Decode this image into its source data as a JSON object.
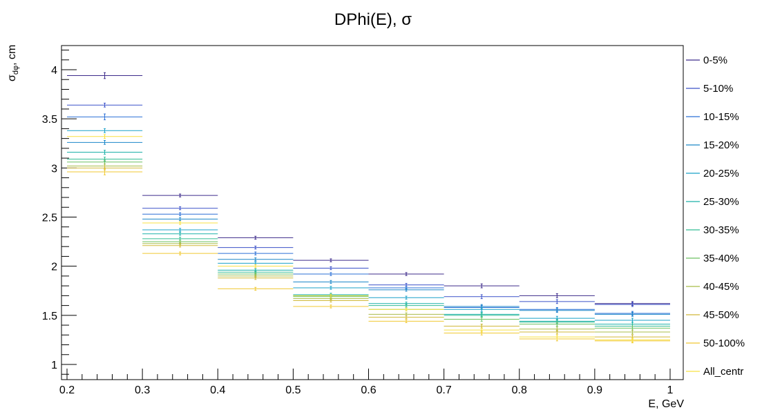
{
  "chart_data": {
    "type": "scatter",
    "title": "DPhi(E), σ",
    "xlabel": "E, GeV",
    "ylabel_main": "σ",
    "ylabel_sub": "dφ",
    "ylabel_unit": ", cm",
    "xlim": [
      0.2,
      1.0
    ],
    "ylim": [
      0.85,
      4.25
    ],
    "x_ticks": [
      0.2,
      0.3,
      0.4,
      0.5,
      0.6,
      0.7,
      0.8,
      0.9,
      1.0
    ],
    "x_tick_labels": [
      "0.2",
      "0.3",
      "0.4",
      "0.5",
      "0.6",
      "0.7",
      "0.8",
      "0.9",
      "1"
    ],
    "y_ticks": [
      1,
      1.5,
      2,
      2.5,
      3,
      3.5,
      4
    ],
    "y_tick_labels": [
      "1",
      "1.5",
      "2",
      "2.5",
      "3",
      "3.5",
      "4"
    ],
    "x_bins": [
      [
        0.2,
        0.3
      ],
      [
        0.3,
        0.4
      ],
      [
        0.4,
        0.5
      ],
      [
        0.5,
        0.6
      ],
      [
        0.6,
        0.7
      ],
      [
        0.7,
        0.8
      ],
      [
        0.8,
        0.9
      ],
      [
        0.9,
        1.0
      ]
    ],
    "x": [
      0.25,
      0.35,
      0.45,
      0.55,
      0.65,
      0.75,
      0.85,
      0.95
    ],
    "grid": false,
    "legend_position": "right",
    "series": [
      {
        "name": "0-5%",
        "color": "#3c2a8a",
        "values": [
          3.94,
          2.72,
          2.29,
          2.06,
          1.92,
          1.8,
          1.7,
          1.62
        ],
        "errors": [
          0.03,
          0.015,
          0.015,
          0.015,
          0.015,
          0.02,
          0.02,
          0.02
        ]
      },
      {
        "name": "5-10%",
        "color": "#3a50c8",
        "values": [
          3.64,
          2.59,
          2.19,
          1.98,
          1.81,
          1.69,
          1.64,
          1.61
        ],
        "errors": [
          0.02,
          0.015,
          0.015,
          0.015,
          0.015,
          0.02,
          0.02,
          0.02
        ]
      },
      {
        "name": "10-15%",
        "color": "#2a6fd6",
        "values": [
          3.52,
          2.53,
          2.13,
          1.92,
          1.78,
          1.58,
          1.56,
          1.52
        ],
        "errors": [
          0.03,
          0.015,
          0.015,
          0.015,
          0.015,
          0.02,
          0.02,
          0.02
        ]
      },
      {
        "name": "15-20%",
        "color": "#1a86c8",
        "values": [
          3.26,
          2.48,
          2.07,
          1.84,
          1.76,
          1.59,
          1.55,
          1.51
        ],
        "errors": [
          0.02,
          0.015,
          0.015,
          0.015,
          0.015,
          0.02,
          0.02,
          0.02
        ]
      },
      {
        "name": "20-25%",
        "color": "#18a0c8",
        "values": [
          3.38,
          2.37,
          2.03,
          1.78,
          1.68,
          1.56,
          1.47,
          1.45
        ],
        "errors": [
          0.02,
          0.015,
          0.015,
          0.015,
          0.015,
          0.02,
          0.02,
          0.02
        ]
      },
      {
        "name": "25-30%",
        "color": "#1ab0a8",
        "values": [
          3.16,
          2.33,
          1.96,
          1.71,
          1.62,
          1.51,
          1.44,
          1.41
        ],
        "errors": [
          0.02,
          0.015,
          0.015,
          0.015,
          0.015,
          0.02,
          0.02,
          0.02
        ]
      },
      {
        "name": "30-35%",
        "color": "#30bc94",
        "values": [
          3.09,
          2.28,
          1.94,
          1.7,
          1.6,
          1.5,
          1.43,
          1.39
        ],
        "errors": [
          0.02,
          0.015,
          0.015,
          0.015,
          0.015,
          0.02,
          0.02,
          0.02
        ]
      },
      {
        "name": "35-40%",
        "color": "#6cc060",
        "values": [
          3.06,
          2.25,
          1.92,
          1.69,
          1.56,
          1.46,
          1.41,
          1.37
        ],
        "errors": [
          0.02,
          0.015,
          0.015,
          0.015,
          0.015,
          0.02,
          0.02,
          0.02
        ]
      },
      {
        "name": "40-45%",
        "color": "#a8bc48",
        "values": [
          3.02,
          2.23,
          1.9,
          1.67,
          1.51,
          1.39,
          1.36,
          1.33
        ],
        "errors": [
          0.02,
          0.015,
          0.015,
          0.015,
          0.015,
          0.02,
          0.02,
          0.02
        ]
      },
      {
        "name": "45-50%",
        "color": "#d0b838",
        "values": [
          3.0,
          2.21,
          1.88,
          1.65,
          1.48,
          1.39,
          1.33,
          1.28
        ],
        "errors": [
          0.02,
          0.015,
          0.015,
          0.015,
          0.015,
          0.02,
          0.02,
          0.02
        ]
      },
      {
        "name": "50-100%",
        "color": "#f0c830",
        "values": [
          2.96,
          2.13,
          1.77,
          1.59,
          1.44,
          1.32,
          1.26,
          1.24
        ],
        "errors": [
          0.03,
          0.015,
          0.015,
          0.015,
          0.015,
          0.02,
          0.02,
          0.02
        ]
      },
      {
        "name": "All_centr",
        "color": "#f8e040",
        "values": [
          3.32,
          2.44,
          2.0,
          1.7,
          1.56,
          1.35,
          1.28,
          1.25
        ],
        "errors": [
          0.02,
          0.015,
          0.015,
          0.015,
          0.015,
          0.02,
          0.02,
          0.02
        ]
      }
    ]
  }
}
